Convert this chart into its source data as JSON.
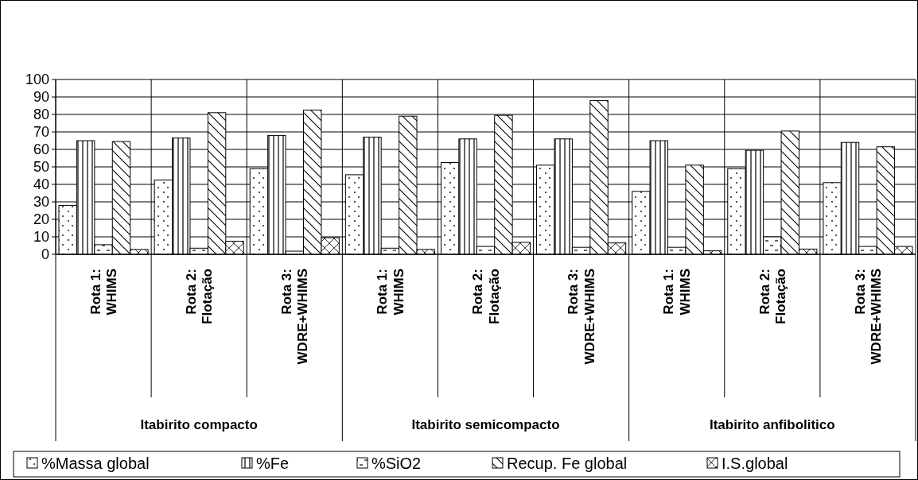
{
  "chart_data": {
    "type": "bar",
    "categories": [
      "Rota 1:\nWHIMS",
      "Rota 2:\nFlotação",
      "Rota 3:\nWDRE+WHIMS",
      "Rota 1:\nWHIMS",
      "Rota 2:\nFlotação",
      "Rota 3:\nWDRE+WHIMS",
      "Rota 1:\nWHIMS",
      "Rota 2:\nFlotação",
      "Rota 3:\nWDRE+WHIMS"
    ],
    "annotations": [
      "Itabirito compacto",
      "Itabirito semicompacto",
      "Itabirito anfibolitico"
    ],
    "series": [
      {
        "name": "%Massa global",
        "color": "#000000",
        "values": [
          28,
          42.5,
          49,
          45.5,
          52.5,
          51,
          36,
          49,
          41
        ]
      },
      {
        "name": "%Fe",
        "color": "#000000",
        "values": [
          65,
          66.5,
          68,
          67,
          66,
          66,
          65,
          59.5,
          64
        ]
      },
      {
        "name": "%SiO2",
        "color": "#000000",
        "values": [
          5.5,
          3.5,
          1.8,
          3.5,
          4.5,
          4,
          4,
          10,
          4.5
        ]
      },
      {
        "name": "Recup. Fe global",
        "color": "#000000",
        "values": [
          64.5,
          81,
          82.5,
          79,
          79.5,
          88,
          51,
          70.5,
          61.5
        ]
      },
      {
        "name": "I.S.global",
        "color": "#000000",
        "values": [
          2.8,
          7.5,
          9.5,
          2.8,
          6.8,
          6.5,
          2,
          3,
          4.5
        ]
      }
    ],
    "ylim": [
      0,
      100
    ],
    "yticks": [
      0,
      10,
      20,
      30,
      40,
      50,
      60,
      70,
      80,
      90,
      100
    ],
    "grid": true,
    "legend": "bottom"
  }
}
